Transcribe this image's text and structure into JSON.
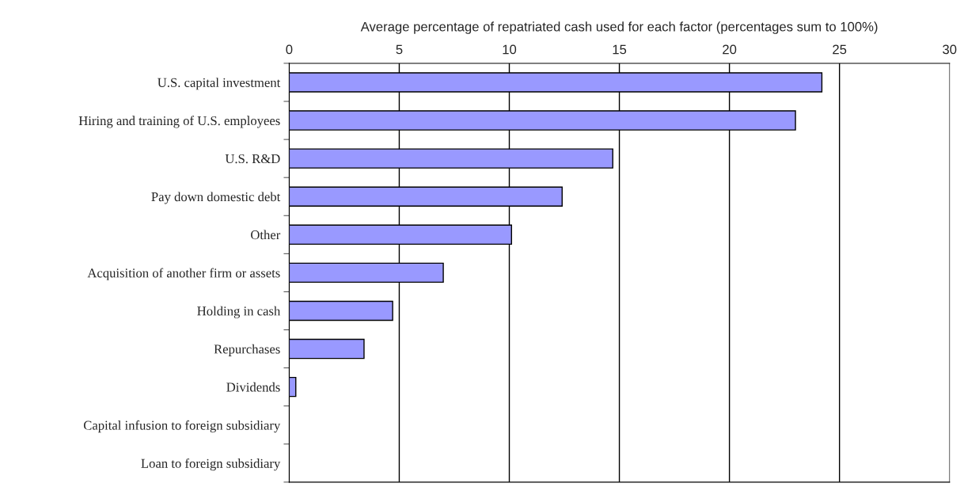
{
  "chart_data": {
    "type": "bar",
    "orientation": "horizontal",
    "xlabel": "Average percentage of repatriated cash used for each factor (percentages sum to 100%)",
    "categories": [
      "U.S. capital investment",
      "Hiring and training of U.S. employees",
      "U.S. R&D",
      "Pay down domestic debt",
      "Other",
      "Acquisition of another firm or assets",
      "Holding in cash",
      "Repurchases",
      "Dividends",
      "Capital infusion to foreign subsidiary",
      "Loan to foreign subsidiary"
    ],
    "values": [
      24.2,
      23.0,
      14.7,
      12.4,
      10.1,
      7.0,
      4.7,
      3.4,
      0.3,
      0,
      0
    ],
    "color": "#9999ff",
    "xlim": [
      0,
      30
    ],
    "xticks": [
      0,
      5,
      10,
      15,
      20,
      25,
      30
    ],
    "grid": "x",
    "legend": false
  }
}
